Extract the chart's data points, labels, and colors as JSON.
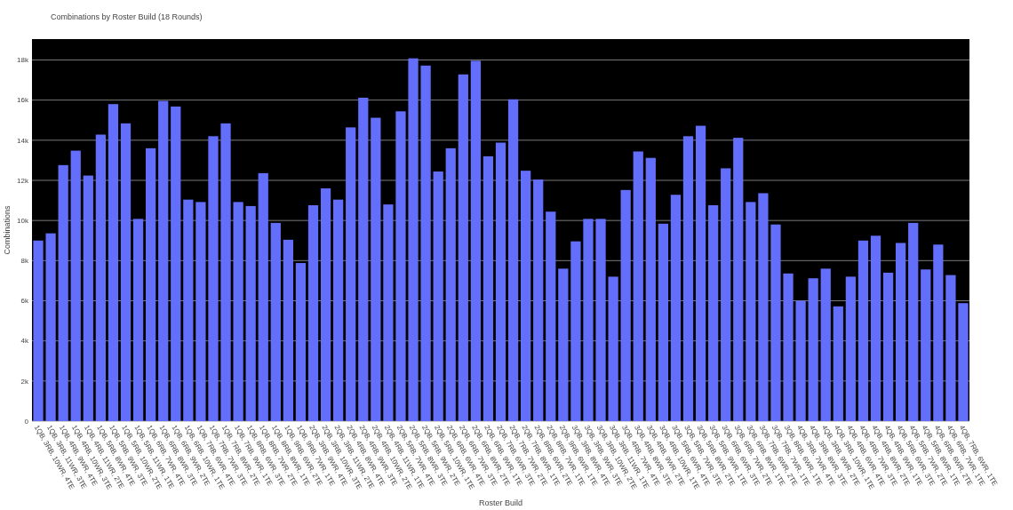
{
  "chart_data": {
    "type": "bar",
    "title": "Combinations by Roster Build (18 Rounds)",
    "xlabel": "Roster Build",
    "ylabel": "Combinations",
    "color": "#636efa",
    "categories": [
      "1QB, 3RB, 10WR, 4TE",
      "1QB, 3RB, 11WR, 3TE",
      "1QB, 4RB, 9WR, 4TE",
      "1QB, 4RB, 10WR, 3TE",
      "1QB, 4RB, 11WR, 2TE",
      "1QB, 5RB, 8WR, 4TE",
      "1QB, 5RB, 9WR, 3TE",
      "1QB, 5RB, 10WR, 2TE",
      "1QB, 5RB, 11WR, 1TE",
      "1QB, 6RB, 7WR, 4TE",
      "1QB, 6RB, 8WR, 3TE",
      "1QB, 6RB, 9WR, 2TE",
      "1QB, 6RB, 10WR, 1TE",
      "1QB, 7RB, 6WR, 4TE",
      "1QB, 7RB, 7WR, 3TE",
      "1QB, 7RB, 8WR, 2TE",
      "1QB, 7RB, 9WR, 1TE",
      "1QB, 8RB, 6WR, 3TE",
      "1QB, 8RB, 7WR, 2TE",
      "1QB, 8RB, 8WR, 1TE",
      "1QB, 9RB, 6WR, 2TE",
      "1QB, 9RB, 7WR, 1TE",
      "2QB, 3RB, 9WR, 4TE",
      "2QB, 3RB, 10WR, 3TE",
      "2QB, 3RB, 11WR, 2TE",
      "2QB, 4RB, 8WR, 4TE",
      "2QB, 4RB, 9WR, 3TE",
      "2QB, 4RB, 10WR, 2TE",
      "2QB, 4RB, 11WR, 1TE",
      "2QB, 5RB, 7WR, 4TE",
      "2QB, 5RB, 8WR, 3TE",
      "2QB, 5RB, 9WR, 2TE",
      "2QB, 5RB, 10WR, 1TE",
      "2QB, 6RB, 6WR, 4TE",
      "2QB, 6RB, 7WR, 3TE",
      "2QB, 6RB, 8WR, 2TE",
      "2QB, 6RB, 9WR, 1TE",
      "2QB, 7RB, 6WR, 3TE",
      "2QB, 7RB, 7WR, 2TE",
      "2QB, 7RB, 8WR, 1TE",
      "2QB, 8RB, 6WR, 2TE",
      "2QB, 8RB, 7WR, 1TE",
      "2QB, 9RB, 6WR, 1TE",
      "3QB, 3RB, 8WR, 4TE",
      "3QB, 3RB, 9WR, 3TE",
      "3QB, 3RB, 10WR, 2TE",
      "3QB, 3RB, 11WR, 1TE",
      "3QB, 4RB, 7WR, 4TE",
      "3QB, 4RB, 8WR, 3TE",
      "3QB, 4RB, 9WR, 2TE",
      "3QB, 4RB, 10WR, 1TE",
      "3QB, 5RB, 6WR, 4TE",
      "3QB, 5RB, 7WR, 3TE",
      "3QB, 5RB, 8WR, 2TE",
      "3QB, 5RB, 9WR, 1TE",
      "3QB, 6RB, 6WR, 3TE",
      "3QB, 6RB, 7WR, 2TE",
      "3QB, 6RB, 8WR, 1TE",
      "3QB, 7RB, 6WR, 2TE",
      "3QB, 7RB, 7WR, 1TE",
      "3QB, 8RB, 6WR, 1TE",
      "4QB, 3RB, 7WR, 4TE",
      "4QB, 3RB, 8WR, 3TE",
      "4QB, 3RB, 9WR, 2TE",
      "4QB, 3RB, 10WR, 1TE",
      "4QB, 4RB, 6WR, 4TE",
      "4QB, 4RB, 7WR, 3TE",
      "4QB, 4RB, 8WR, 2TE",
      "4QB, 4RB, 9WR, 1TE",
      "4QB, 5RB, 6WR, 3TE",
      "4QB, 5RB, 7WR, 2TE",
      "4QB, 5RB, 8WR, 1TE",
      "4QB, 6RB, 6WR, 2TE",
      "4QB, 6RB, 7WR, 1TE",
      "4QB, 7RB, 6WR, 1TE"
    ],
    "values": [
      9000,
      9360,
      12760,
      13480,
      12240,
      14280,
      15800,
      14840,
      10080,
      13600,
      15960,
      15680,
      11040,
      10920,
      14200,
      14840,
      10920,
      10720,
      12360,
      9880,
      9040,
      7880,
      10760,
      11600,
      11040,
      14640,
      16120,
      15120,
      10800,
      15440,
      18080,
      17720,
      12440,
      13600,
      17280,
      17960,
      13200,
      13880,
      16040,
      12480,
      12040,
      10440,
      7600,
      8960,
      10080,
      10080,
      7200,
      11520,
      13440,
      13120,
      9840,
      11280,
      14200,
      14720,
      10760,
      12600,
      14120,
      10920,
      11360,
      9800,
      7360,
      6000,
      7120,
      7600,
      5720,
      7200,
      9000,
      9240,
      7400,
      8880,
      9880,
      7560,
      8800,
      7280,
      5880
    ],
    "ylim": [
      0,
      19040
    ],
    "yticks": [
      0,
      {
        "value": 2000,
        "label": "2k"
      },
      {
        "value": 4000,
        "label": "4k"
      },
      {
        "value": 6000,
        "label": "6k"
      },
      {
        "value": 8000,
        "label": "8k"
      },
      {
        "value": 10000,
        "label": "10k"
      },
      {
        "value": 12000,
        "label": "12k"
      },
      {
        "value": 14000,
        "label": "14k"
      },
      {
        "value": 16000,
        "label": "16k"
      },
      {
        "value": 18000,
        "label": "18k"
      }
    ],
    "grid": "y"
  }
}
